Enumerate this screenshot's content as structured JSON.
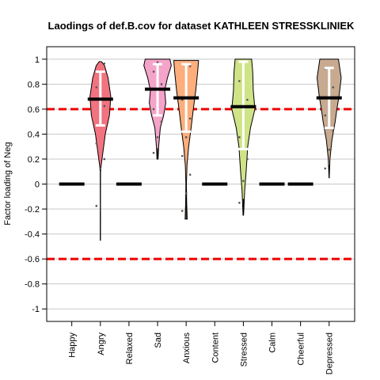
{
  "chart_data": {
    "type": "violin",
    "title": "Laodings of def.B.cov for dataset KATHLEEN STRESSKLINIEK",
    "xlabel": "",
    "ylabel": "Factor loading of Neg",
    "ylim": [
      -1.1,
      1.1
    ],
    "yticks": [
      1,
      0.8,
      0.6,
      0.4,
      0.2,
      0,
      -0.2,
      -0.4,
      -0.6,
      -0.8,
      -1
    ],
    "ytick_labels": [
      "1",
      "0.8",
      "0.6",
      "0.4",
      "0.2",
      "0",
      "-0.2",
      "-0.4",
      "-0.6",
      "-0.8",
      "-1"
    ],
    "grid": true,
    "threshold_lines": [
      0.6,
      -0.6
    ],
    "threshold_color": "#ee0000",
    "categories": [
      "Happy",
      "Angry",
      "Relaxed",
      "Sad",
      "Anxious",
      "Content",
      "Stressed",
      "Calm",
      "Cheerful",
      "Depressed"
    ],
    "items": [
      {
        "name": "Happy",
        "type": "constant",
        "median": 0
      },
      {
        "name": "Angry",
        "type": "violin",
        "color": "#f27380",
        "min": -0.45,
        "max": 0.98,
        "median": 0.68,
        "q1": 0.47,
        "q3": 0.9,
        "profile": [
          [
            -0.45,
            0.004
          ],
          [
            0.1,
            0.005
          ],
          [
            0.15,
            0.03
          ],
          [
            0.25,
            0.09
          ],
          [
            0.4,
            0.18
          ],
          [
            0.55,
            0.33
          ],
          [
            0.7,
            0.38
          ],
          [
            0.85,
            0.28
          ],
          [
            0.95,
            0.15
          ],
          [
            0.98,
            0.04
          ]
        ]
      },
      {
        "name": "Relaxed",
        "type": "constant",
        "median": 0
      },
      {
        "name": "Sad",
        "type": "violin",
        "color": "#f4a3c9",
        "min": 0.2,
        "max": 1.0,
        "median": 0.76,
        "q1": 0.55,
        "q3": 0.96,
        "profile": [
          [
            0.2,
            0.02
          ],
          [
            0.3,
            0.04
          ],
          [
            0.45,
            0.1
          ],
          [
            0.55,
            0.22
          ],
          [
            0.65,
            0.3
          ],
          [
            0.75,
            0.26
          ],
          [
            0.85,
            0.36
          ],
          [
            0.95,
            0.5
          ],
          [
            1.0,
            0.45
          ]
        ]
      },
      {
        "name": "Anxious",
        "type": "violin",
        "color": "#fcae7d",
        "min": -0.28,
        "max": 0.99,
        "median": 0.69,
        "q1": 0.42,
        "q3": 0.96,
        "profile": [
          [
            -0.28,
            0.04
          ],
          [
            -0.15,
            0.02
          ],
          [
            0.0,
            0.01
          ],
          [
            0.15,
            0.03
          ],
          [
            0.3,
            0.09
          ],
          [
            0.45,
            0.18
          ],
          [
            0.6,
            0.26
          ],
          [
            0.75,
            0.35
          ],
          [
            0.9,
            0.42
          ],
          [
            0.99,
            0.45
          ]
        ]
      },
      {
        "name": "Content",
        "type": "constant",
        "median": 0
      },
      {
        "name": "Stressed",
        "type": "violin",
        "color": "#cfe387",
        "min": -0.25,
        "max": 1.0,
        "median": 0.62,
        "q1": 0.28,
        "q3": 0.98,
        "profile": [
          [
            -0.25,
            0.01
          ],
          [
            -0.05,
            0.05
          ],
          [
            0.1,
            0.1
          ],
          [
            0.3,
            0.16
          ],
          [
            0.45,
            0.26
          ],
          [
            0.6,
            0.42
          ],
          [
            0.75,
            0.36
          ],
          [
            0.9,
            0.34
          ],
          [
            1.0,
            0.3
          ]
        ]
      },
      {
        "name": "Calm",
        "type": "constant",
        "median": 0
      },
      {
        "name": "Cheerful",
        "type": "constant",
        "median": 0
      },
      {
        "name": "Depressed",
        "type": "violin",
        "color": "#c7aa8f",
        "min": 0.05,
        "max": 1.0,
        "median": 0.69,
        "q1": 0.45,
        "q3": 0.93,
        "profile": [
          [
            0.05,
            0.005
          ],
          [
            0.2,
            0.03
          ],
          [
            0.35,
            0.1
          ],
          [
            0.5,
            0.22
          ],
          [
            0.6,
            0.28
          ],
          [
            0.7,
            0.36
          ],
          [
            0.85,
            0.44
          ],
          [
            1.0,
            0.34
          ]
        ]
      }
    ]
  }
}
